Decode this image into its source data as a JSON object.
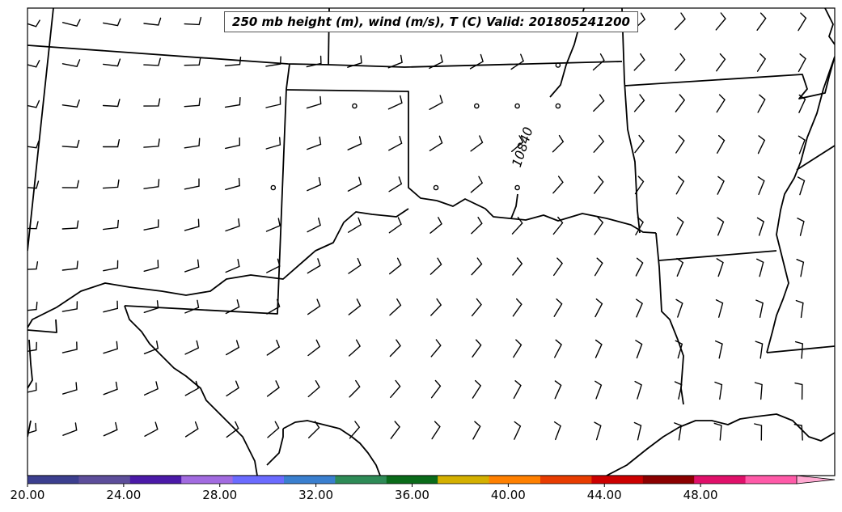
{
  "title": "250 mb height (m), wind (m/s), T (C) Valid: 201805241200",
  "contour_label": "10840",
  "colorbar": {
    "ticks": [
      "20.00",
      "24.00",
      "28.00",
      "32.00",
      "36.00",
      "40.00",
      "44.00",
      "48.00"
    ],
    "tick_values": [
      20,
      24,
      28,
      32,
      36,
      40,
      44,
      48
    ],
    "range": [
      20,
      52
    ],
    "colors": [
      "#3c3f8f",
      "#5d4e9b",
      "#4b1aa8",
      "#a26be0",
      "#6b6bff",
      "#3a7fcf",
      "#2e8b57",
      "#0a6b1a",
      "#d4b000",
      "#ff8000",
      "#e83c00",
      "#cc0000",
      "#8b0000",
      "#e0106a",
      "#ff5aa8",
      "#ffaad2"
    ]
  }
}
